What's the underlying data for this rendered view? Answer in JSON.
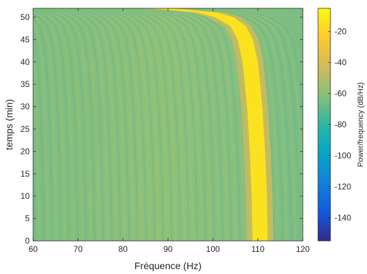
{
  "chart_data": {
    "type": "heatmap",
    "title": "",
    "xlabel": "Fréquence (Hz)",
    "ylabel": "temps (min)",
    "xlim": [
      60,
      120
    ],
    "ylim": [
      0,
      52
    ],
    "x_ticks": [
      60,
      70,
      80,
      90,
      100,
      110,
      120
    ],
    "y_ticks": [
      0,
      5,
      10,
      15,
      20,
      25,
      30,
      35,
      40,
      45,
      50
    ],
    "colorbar": {
      "label": "Power/frequency (dB/Hz)",
      "range": [
        -155,
        -5
      ],
      "ticks": [
        -20,
        -40,
        -60,
        -80,
        -100,
        -120,
        -140
      ],
      "colormap": "parula",
      "colors": [
        "#352a87",
        "#0f5cdd",
        "#1481d6",
        "#06a4ca",
        "#2eb7a4",
        "#87bf77",
        "#d1bb59",
        "#fec832",
        "#f9fb0e"
      ]
    },
    "background_level_db": -62,
    "dominant_ridge": {
      "description_values": "peak frequency (Hz) over time (min)",
      "points": [
        {
          "t": 0,
          "f": 110.5
        },
        {
          "t": 10,
          "f": 110.3
        },
        {
          "t": 20,
          "f": 109.9
        },
        {
          "t": 30,
          "f": 109.3
        },
        {
          "t": 40,
          "f": 108.3
        },
        {
          "t": 45,
          "f": 107.2
        },
        {
          "t": 48,
          "f": 105.6
        },
        {
          "t": 50,
          "f": 102.5
        },
        {
          "t": 51,
          "f": 99.0
        },
        {
          "t": 51.5,
          "f": 94.0
        }
      ],
      "peak_level_db": -12
    }
  }
}
